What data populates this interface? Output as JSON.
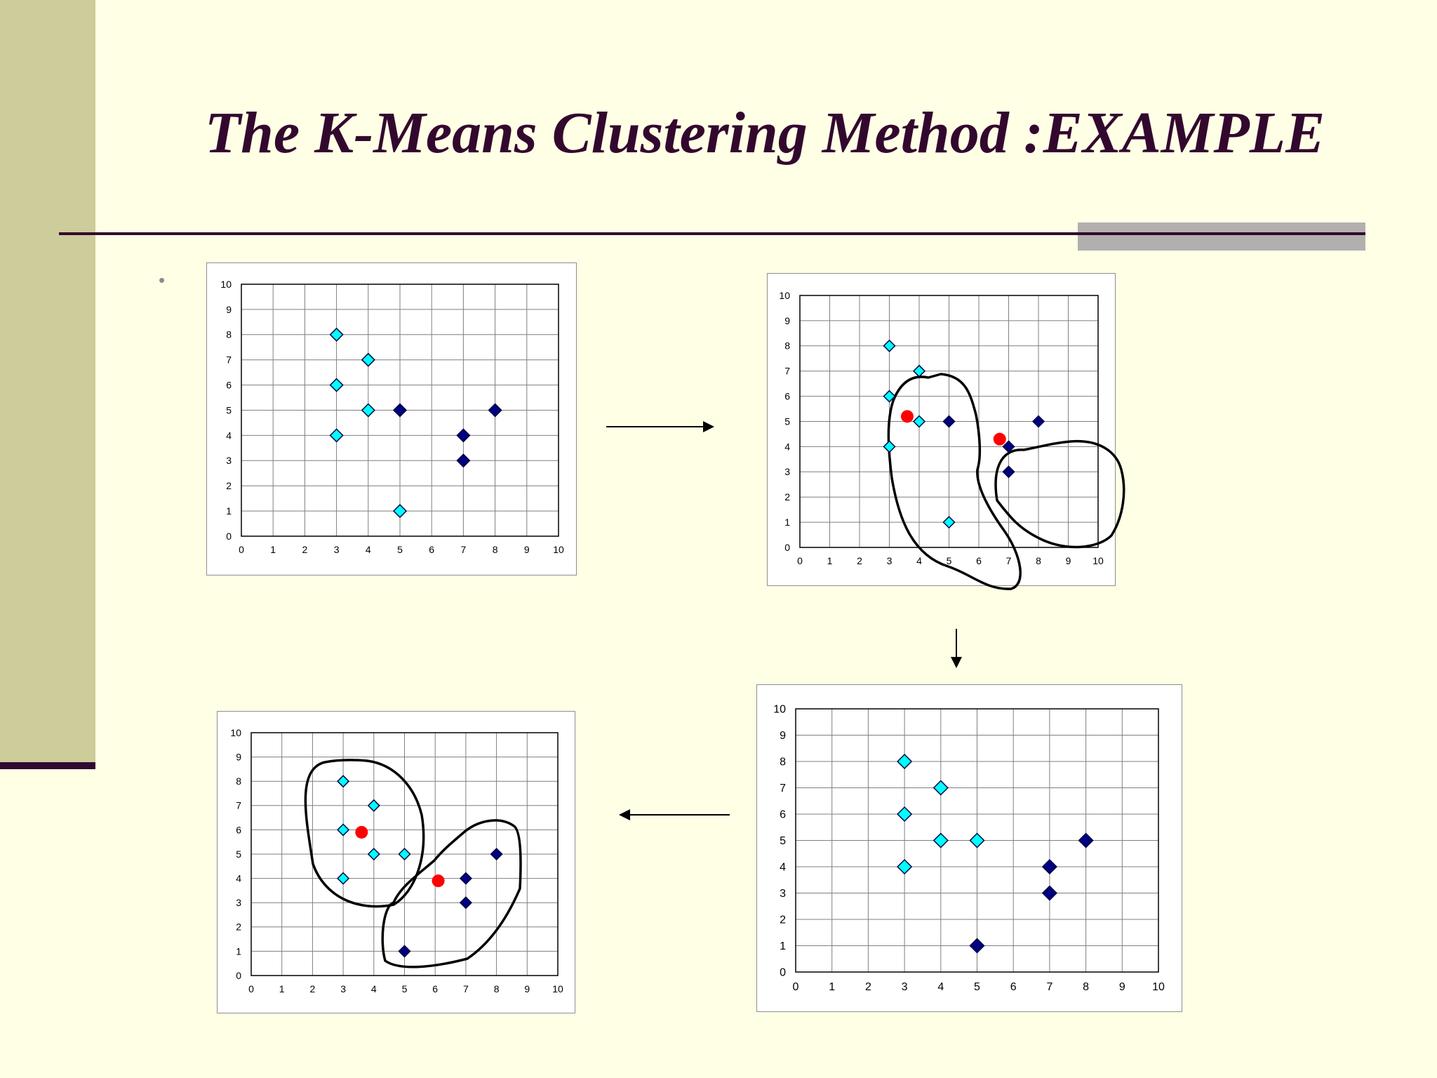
{
  "slide": {
    "title": "The K-Means Clustering Method :EXAMPLE",
    "bullet": "•",
    "colors": {
      "background": "#FFFFE6",
      "sidebar": "#CDCC9B",
      "title": "#33082E",
      "cluster_a_marker": "#00FFFF",
      "cluster_b_marker": "#000080",
      "centroid": "#FF0000"
    }
  },
  "chart_data": [
    {
      "type": "scatter",
      "title": "",
      "xlabel": "",
      "ylabel": "",
      "xlim": [
        0,
        10
      ],
      "ylim": [
        0,
        10
      ],
      "grid": true,
      "x_ticks": [
        "0",
        "1",
        "2",
        "3",
        "4",
        "5",
        "6",
        "7",
        "8",
        "9",
        "10"
      ],
      "y_ticks": [
        "0",
        "1",
        "2",
        "3",
        "4",
        "5",
        "6",
        "7",
        "8",
        "9",
        "10"
      ],
      "series": [
        {
          "color": "#00FFFF",
          "marker": "diamond",
          "points": [
            [
              3,
              8
            ],
            [
              3,
              6
            ],
            [
              3,
              4
            ],
            [
              4,
              7
            ],
            [
              4,
              5
            ],
            [
              5,
              1
            ]
          ]
        },
        {
          "color": "#000080",
          "marker": "diamond",
          "points": [
            [
              5,
              5
            ],
            [
              7,
              4
            ],
            [
              7,
              3
            ],
            [
              8,
              5
            ]
          ]
        }
      ]
    },
    {
      "type": "scatter",
      "title": "",
      "xlabel": "",
      "ylabel": "",
      "xlim": [
        0,
        10
      ],
      "ylim": [
        0,
        10
      ],
      "grid": true,
      "x_ticks": [
        "0",
        "1",
        "2",
        "3",
        "4",
        "5",
        "6",
        "7",
        "8",
        "9",
        "10"
      ],
      "y_ticks": [
        "0",
        "1",
        "2",
        "3",
        "4",
        "5",
        "6",
        "7",
        "8",
        "9",
        "10"
      ],
      "series": [
        {
          "color": "#00FFFF",
          "marker": "diamond",
          "points": [
            [
              3,
              8
            ],
            [
              3,
              6
            ],
            [
              3,
              4
            ],
            [
              4,
              7
            ],
            [
              4,
              5
            ],
            [
              5,
              1
            ]
          ]
        },
        {
          "color": "#000080",
          "marker": "diamond",
          "points": [
            [
              5,
              5
            ],
            [
              7,
              4
            ],
            [
              7,
              3
            ],
            [
              8,
              5
            ]
          ]
        }
      ],
      "centroids": [
        [
          3.6,
          5.2
        ],
        [
          6.7,
          4.3
        ]
      ]
    },
    {
      "type": "scatter",
      "title": "",
      "xlabel": "",
      "ylabel": "",
      "xlim": [
        0,
        10
      ],
      "ylim": [
        0,
        10
      ],
      "grid": true,
      "x_ticks": [
        "0",
        "1",
        "2",
        "3",
        "4",
        "5",
        "6",
        "7",
        "8",
        "9",
        "10"
      ],
      "y_ticks": [
        "0",
        "1",
        "2",
        "3",
        "4",
        "5",
        "6",
        "7",
        "8",
        "9",
        "10"
      ],
      "series": [
        {
          "color": "#00FFFF",
          "marker": "diamond",
          "points": [
            [
              3,
              8
            ],
            [
              3,
              6
            ],
            [
              3,
              4
            ],
            [
              4,
              7
            ],
            [
              4,
              5
            ],
            [
              5,
              5
            ]
          ]
        },
        {
          "color": "#000080",
          "marker": "diamond",
          "points": [
            [
              5,
              1
            ],
            [
              7,
              4
            ],
            [
              7,
              3
            ],
            [
              8,
              5
            ]
          ]
        }
      ]
    },
    {
      "type": "scatter",
      "title": "",
      "xlabel": "",
      "ylabel": "",
      "xlim": [
        0,
        10
      ],
      "ylim": [
        0,
        10
      ],
      "grid": true,
      "x_ticks": [
        "0",
        "1",
        "2",
        "3",
        "4",
        "5",
        "6",
        "7",
        "8",
        "9",
        "10"
      ],
      "y_ticks": [
        "0",
        "1",
        "2",
        "3",
        "4",
        "5",
        "6",
        "7",
        "8",
        "9",
        "10"
      ],
      "series": [
        {
          "color": "#00FFFF",
          "marker": "diamond",
          "points": [
            [
              3,
              8
            ],
            [
              3,
              6
            ],
            [
              3,
              4
            ],
            [
              4,
              7
            ],
            [
              4,
              5
            ],
            [
              5,
              5
            ]
          ]
        },
        {
          "color": "#000080",
          "marker": "diamond",
          "points": [
            [
              5,
              1
            ],
            [
              7,
              4
            ],
            [
              7,
              3
            ],
            [
              8,
              5
            ]
          ]
        }
      ],
      "centroids": [
        [
          3.6,
          5.9
        ],
        [
          6.1,
          3.9
        ]
      ]
    }
  ]
}
